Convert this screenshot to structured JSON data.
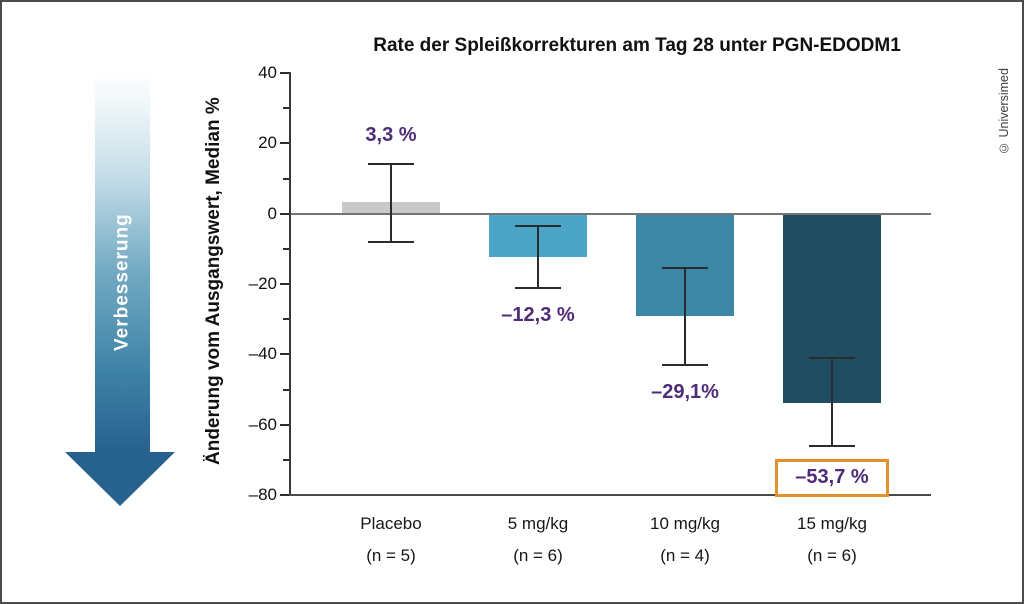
{
  "credit": "© Universimed",
  "improvement_arrow": {
    "label": "Verbesserung"
  },
  "chart_data": {
    "type": "bar",
    "title": "Rate der Spleißkorrekturen am Tag 28 unter PGN-EDODM1",
    "xlabel": "",
    "ylabel": "Änderung vom Ausgangswert, Median %",
    "ylim": [
      -80,
      40
    ],
    "grid": false,
    "legend": "none",
    "zero_line": 0,
    "y_ticks_major": [
      40,
      20,
      0,
      -20,
      -40,
      -60,
      -80
    ],
    "y_tick_labels": [
      "40",
      "20",
      "0",
      "–20",
      "–40",
      "–60",
      "–80"
    ],
    "y_ticks_minor": [
      30,
      10,
      -10,
      -30,
      -50,
      -70
    ],
    "categories": [
      "Placebo",
      "5 mg/kg",
      "10 mg/kg",
      "15 mg/kg"
    ],
    "groups": [
      {
        "category": "Placebo",
        "n_label": "(n = 5)",
        "value": 3.3,
        "value_label": "3,3 %",
        "error_high": 14,
        "error_low": -8,
        "color": "#c9c9c9",
        "label_position": "above",
        "boxed": false
      },
      {
        "category": "5 mg/kg",
        "n_label": "(n = 6)",
        "value": -12.3,
        "value_label": "–12,3 %",
        "error_high": -3.5,
        "error_low": -21,
        "color": "#4ba5c6",
        "label_position": "below",
        "boxed": false
      },
      {
        "category": "10 mg/kg",
        "n_label": "(n = 4)",
        "value": -29.1,
        "value_label": "–29,1%",
        "error_high": -15.5,
        "error_low": -43,
        "color": "#3d87a6",
        "label_position": "below",
        "boxed": false
      },
      {
        "category": "15 mg/kg",
        "n_label": "(n = 6)",
        "value": -53.7,
        "value_label": "–53,7 %",
        "error_high": -41,
        "error_low": -66,
        "color": "#204d61",
        "label_position": "below",
        "boxed": true
      }
    ],
    "colors": {
      "value_label": "#4f2b78",
      "highlight_box_border": "#e0902f",
      "arrow_gradient_start": "#ffffff",
      "arrow_gradient_end": "#27618d"
    }
  }
}
